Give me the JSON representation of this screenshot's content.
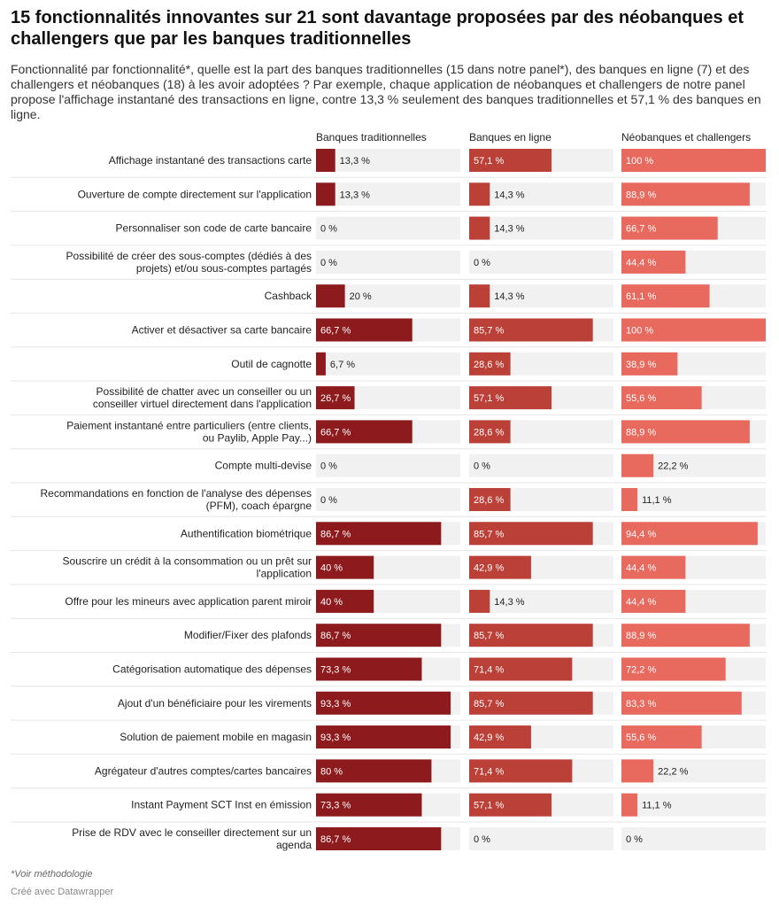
{
  "title": "15 fonctionnalités innovantes sur 21 sont davantage proposées par des néobanques et challengers que par les banques traditionnelles",
  "subtitle": "Fonctionnalité par fonctionnalité*, quelle est la part des banques traditionnelles (15 dans notre panel*), des banques en ligne (7) et des challengers et néobanques (18) à les avoir adoptées ? Par exemple, chaque application de néobanques et challengers de notre panel propose l'affichage instantané des transactions en ligne, contre 13,3 % seulement des banques traditionnelles et 57,1 % des banques en ligne.",
  "notes": "*Voir méthodologie",
  "credit": "Créé avec Datawrapper",
  "colors": {
    "traditionnelles": "#8d1a1c",
    "en_ligne": "#bb4037",
    "neobanques": "#e8695d",
    "track": "#f1f1f1"
  },
  "chart_data": {
    "type": "bar",
    "orientation": "horizontal",
    "xlim": [
      0,
      100
    ],
    "unit": "%",
    "categories": [
      "Affichage instantané des transactions carte",
      "Ouverture de compte directement sur l'application",
      "Personnaliser son code de carte bancaire",
      "Possibilité de créer des sous-comptes (dédiés à des projets) et/ou sous-comptes partagés",
      "Cashback",
      "Activer et désactiver sa carte bancaire",
      "Outil de cagnotte",
      "Possibilité de chatter avec un conseiller ou un conseiller virtuel directement dans l'application",
      "Paiement instantané entre particuliers (entre clients, ou Paylib, Apple Pay...)",
      "Compte multi-devise",
      "Recommandations en fonction de l'analyse des dépenses (PFM), coach épargne",
      "Authentification biométrique",
      "Souscrire un crédit à la consommation ou un prêt sur l'application",
      "Offre pour les mineurs avec application parent miroir",
      "Modifier/Fixer des plafonds",
      "Catégorisation automatique des dépenses",
      "Ajout d'un bénéficiaire pour les virements",
      "Solution de paiement mobile en magasin",
      "Agrégateur d'autres comptes/cartes bancaires",
      "Instant Payment SCT Inst en émission",
      "Prise de RDV avec le conseiller directement sur un agenda"
    ],
    "series": [
      {
        "name": "Banques traditionnelles",
        "values": [
          13.3,
          13.3,
          0,
          0,
          20,
          66.7,
          6.7,
          26.7,
          66.7,
          0,
          0,
          86.7,
          40,
          40,
          86.7,
          73.3,
          93.3,
          93.3,
          80,
          73.3,
          86.7
        ],
        "labels": [
          "13,3 %",
          "13,3 %",
          "0 %",
          "0 %",
          "20 %",
          "66,7 %",
          "6,7 %",
          "26,7 %",
          "66,7 %",
          "0 %",
          "0 %",
          "86,7 %",
          "40 %",
          "40 %",
          "86,7 %",
          "73,3 %",
          "93,3 %",
          "93,3 %",
          "80 %",
          "73,3 %",
          "86,7 %"
        ]
      },
      {
        "name": "Banques en ligne",
        "values": [
          57.1,
          14.3,
          14.3,
          0,
          14.3,
          85.7,
          28.6,
          57.1,
          28.6,
          0,
          28.6,
          85.7,
          42.9,
          14.3,
          85.7,
          71.4,
          85.7,
          42.9,
          71.4,
          57.1,
          0
        ],
        "labels": [
          "57,1 %",
          "14,3 %",
          "14,3 %",
          "0 %",
          "14,3 %",
          "85,7 %",
          "28,6 %",
          "57,1 %",
          "28,6 %",
          "0 %",
          "28,6 %",
          "85,7 %",
          "42,9 %",
          "14,3 %",
          "85,7 %",
          "71,4 %",
          "85,7 %",
          "42,9 %",
          "71,4 %",
          "57,1 %",
          "0 %"
        ]
      },
      {
        "name": "Néobanques et challengers",
        "values": [
          100,
          88.9,
          66.7,
          44.4,
          61.1,
          100,
          38.9,
          55.6,
          88.9,
          22.2,
          11.1,
          94.4,
          44.4,
          44.4,
          88.9,
          72.2,
          83.3,
          55.6,
          22.2,
          11.1,
          0
        ],
        "labels": [
          "100 %",
          "88,9 %",
          "66,7 %",
          "44,4 %",
          "61,1 %",
          "100 %",
          "38,9 %",
          "55,6 %",
          "88,9 %",
          "22,2 %",
          "11,1 %",
          "94,4 %",
          "44,4 %",
          "44,4 %",
          "88,9 %",
          "72,2 %",
          "83,3 %",
          "55,6 %",
          "22,2 %",
          "11,1 %",
          "0 %"
        ]
      }
    ]
  }
}
